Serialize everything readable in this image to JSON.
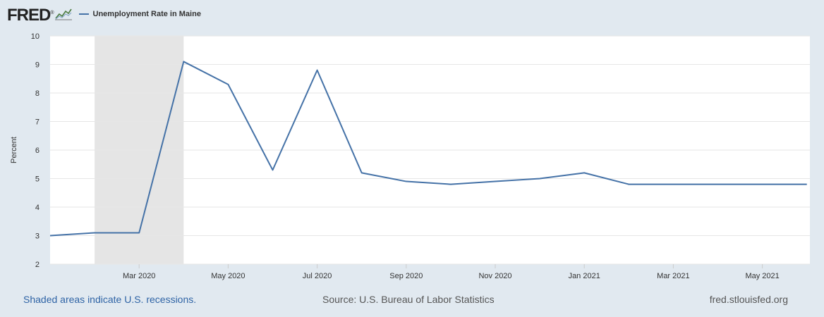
{
  "header": {
    "logo_text": "FRED",
    "logo_mark": "®",
    "logo_icon": "line-graph-icon"
  },
  "chart_data": {
    "type": "line",
    "title": "",
    "xlabel": "",
    "ylabel": "Percent",
    "ylim": [
      2,
      10
    ],
    "yticks": [
      "2",
      "3",
      "4",
      "5",
      "6",
      "7",
      "8",
      "9",
      "10"
    ],
    "grid": true,
    "legend_position": "top-left",
    "x": [
      "2020-01",
      "2020-02",
      "2020-03",
      "2020-04",
      "2020-05",
      "2020-06",
      "2020-07",
      "2020-08",
      "2020-09",
      "2020-10",
      "2020-11",
      "2020-12",
      "2021-01",
      "2021-02",
      "2021-03",
      "2021-04",
      "2021-05",
      "2021-06"
    ],
    "xticks": [
      {
        "date": "2020-03",
        "label": "Mar 2020"
      },
      {
        "date": "2020-05",
        "label": "May 2020"
      },
      {
        "date": "2020-07",
        "label": "Jul 2020"
      },
      {
        "date": "2020-09",
        "label": "Sep 2020"
      },
      {
        "date": "2020-11",
        "label": "Nov 2020"
      },
      {
        "date": "2021-01",
        "label": "Jan 2021"
      },
      {
        "date": "2021-03",
        "label": "Mar 2021"
      },
      {
        "date": "2021-05",
        "label": "May 2021"
      }
    ],
    "series": [
      {
        "name": "Unemployment Rate in Maine",
        "color": "#4572a7",
        "values": [
          3.0,
          3.1,
          3.1,
          9.1,
          8.3,
          5.3,
          8.8,
          5.2,
          4.9,
          4.8,
          4.9,
          5.0,
          5.2,
          4.8,
          4.8,
          4.8,
          4.8,
          4.8
        ]
      }
    ],
    "recession": {
      "start": "2020-02",
      "end": "2020-04",
      "color": "#e5e5e5"
    }
  },
  "footer": {
    "recession_note": "Shaded areas indicate U.S. recessions.",
    "source": "Source: U.S. Bureau of Labor Statistics",
    "site": "fred.stlouisfed.org"
  }
}
